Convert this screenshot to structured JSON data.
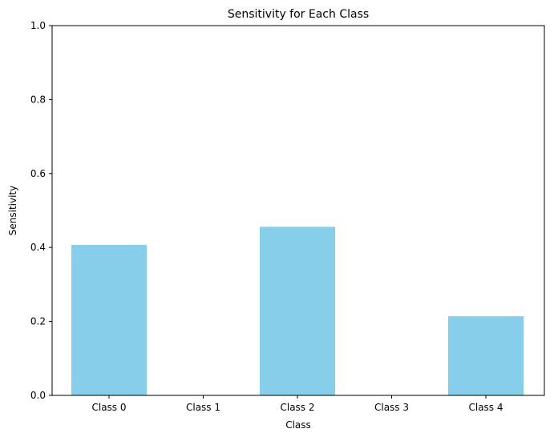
{
  "chart_data": {
    "type": "bar",
    "title": "Sensitivity for Each Class",
    "xlabel": "Class",
    "ylabel": "Sensitivity",
    "categories": [
      "Class 0",
      "Class 1",
      "Class 2",
      "Class 3",
      "Class 4"
    ],
    "values": [
      0.407,
      0.0,
      0.456,
      0.0,
      0.214
    ],
    "ylim": [
      0,
      1
    ],
    "yticks": [
      0.0,
      0.2,
      0.4,
      0.6,
      0.8,
      1.0
    ],
    "ytick_labels": [
      "0.0",
      "0.2",
      "0.4",
      "0.6",
      "0.8",
      "1.0"
    ],
    "grid": false,
    "legend": "none",
    "bar_color": "#87ceeb"
  }
}
